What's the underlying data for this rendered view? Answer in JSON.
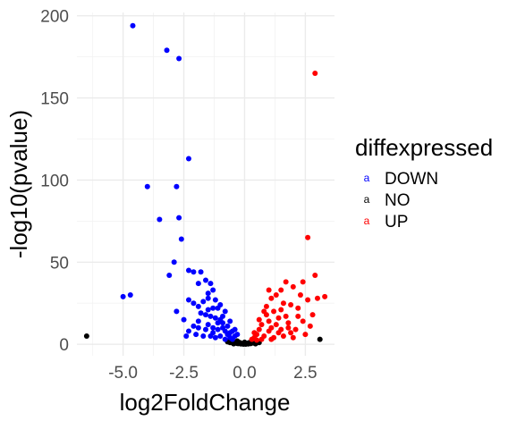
{
  "chart_data": {
    "type": "scatter",
    "xlabel": "log2FoldChange",
    "ylabel": "-log10(pvalue)",
    "xlim": [
      -6.9,
      3.7
    ],
    "ylim": [
      -7,
      202
    ],
    "x_ticks": [
      -5.0,
      -2.5,
      0.0,
      2.5
    ],
    "x_tick_labels": [
      "-5.0",
      "-2.5",
      "0.0",
      "2.5"
    ],
    "y_ticks": [
      0,
      50,
      100,
      150,
      200
    ],
    "y_tick_labels": [
      "0",
      "50",
      "100",
      "150",
      "200"
    ],
    "grid": true,
    "legend": {
      "title": "diffexpressed",
      "position": "right",
      "key_glyph": "a",
      "entries": [
        {
          "label": "DOWN",
          "color": "#0000ff"
        },
        {
          "label": "NO",
          "color": "#000000"
        },
        {
          "label": "UP",
          "color": "#ff0000"
        }
      ]
    },
    "series": [
      {
        "name": "DOWN",
        "color": "#0000ff",
        "points": [
          [
            -4.6,
            194
          ],
          [
            -3.2,
            179
          ],
          [
            -2.7,
            174
          ],
          [
            -2.3,
            113
          ],
          [
            -4.0,
            96
          ],
          [
            -2.8,
            96
          ],
          [
            -3.5,
            76
          ],
          [
            -2.7,
            77
          ],
          [
            -2.6,
            64
          ],
          [
            -2.9,
            50
          ],
          [
            -3.1,
            42
          ],
          [
            -5.0,
            29
          ],
          [
            -4.7,
            30
          ],
          [
            -2.3,
            45
          ],
          [
            -2.1,
            44
          ],
          [
            -1.8,
            44
          ],
          [
            -1.6,
            39
          ],
          [
            -1.9,
            37
          ],
          [
            -1.4,
            37
          ],
          [
            -1.3,
            33
          ],
          [
            -1.5,
            31
          ],
          [
            -2.3,
            27
          ],
          [
            -2.1,
            25
          ],
          [
            -1.9,
            23
          ],
          [
            -1.7,
            26
          ],
          [
            -1.5,
            21
          ],
          [
            -1.3,
            22
          ],
          [
            -1.1,
            22
          ],
          [
            -2.8,
            20
          ],
          [
            -2.5,
            15
          ],
          [
            -1.8,
            19
          ],
          [
            -1.6,
            18
          ],
          [
            -1.4,
            17
          ],
          [
            -1.2,
            16
          ],
          [
            -1.0,
            15
          ],
          [
            -0.9,
            13
          ],
          [
            -1.5,
            12
          ],
          [
            -1.3,
            10
          ],
          [
            -1.1,
            9
          ],
          [
            -0.9,
            10
          ],
          [
            -0.8,
            8
          ],
          [
            -0.7,
            6
          ],
          [
            -0.6,
            4
          ],
          [
            -0.5,
            3
          ],
          [
            -1.9,
            10
          ],
          [
            -2.3,
            8
          ],
          [
            -2.0,
            6
          ],
          [
            -1.7,
            5
          ],
          [
            -1.4,
            5
          ],
          [
            -1.2,
            4
          ],
          [
            -1.0,
            5
          ],
          [
            -0.8,
            3
          ],
          [
            -0.6,
            7
          ],
          [
            -0.4,
            5
          ],
          [
            -0.5,
            8
          ],
          [
            -0.7,
            11
          ],
          [
            -0.9,
            17
          ],
          [
            -1.1,
            13
          ],
          [
            -1.3,
            7
          ],
          [
            -1.6,
            9
          ],
          [
            -1.9,
            14
          ],
          [
            -2.1,
            11
          ],
          [
            -2.4,
            5
          ],
          [
            -1.2,
            27
          ],
          [
            -0.8,
            20
          ],
          [
            -0.6,
            14
          ],
          [
            -0.4,
            9
          ],
          [
            -0.3,
            6
          ],
          [
            -1.5,
            28
          ],
          [
            -1.0,
            24
          ]
        ]
      },
      {
        "name": "NO",
        "color": "#000000",
        "points": [
          [
            -6.5,
            5
          ],
          [
            3.1,
            3
          ],
          [
            -0.5,
            2
          ],
          [
            -0.4,
            1.5
          ],
          [
            -0.3,
            2
          ],
          [
            -0.2,
            1
          ],
          [
            -0.1,
            0.5
          ],
          [
            0.0,
            0.3
          ],
          [
            0.1,
            0.6
          ],
          [
            0.2,
            1
          ],
          [
            0.3,
            1.5
          ],
          [
            0.4,
            2
          ],
          [
            0.5,
            1.5
          ],
          [
            -0.6,
            1
          ],
          [
            -0.3,
            0.5
          ],
          [
            0.0,
            1.2
          ],
          [
            0.15,
            0.2
          ],
          [
            -0.15,
            0.2
          ],
          [
            0.25,
            0.4
          ],
          [
            -0.25,
            0.4
          ],
          [
            0.35,
            0.8
          ],
          [
            -0.35,
            0.8
          ],
          [
            0.6,
            1
          ],
          [
            -0.7,
            1.5
          ],
          [
            0.05,
            0.1
          ],
          [
            -0.05,
            0.1
          ],
          [
            0.45,
            0.3
          ],
          [
            -0.45,
            0.3
          ]
        ]
      },
      {
        "name": "UP",
        "color": "#ff0000",
        "points": [
          [
            2.9,
            165
          ],
          [
            2.6,
            65
          ],
          [
            2.9,
            42
          ],
          [
            2.4,
            38
          ],
          [
            3.3,
            29
          ],
          [
            3.0,
            28
          ],
          [
            1.5,
            33
          ],
          [
            1.7,
            38
          ],
          [
            2.0,
            35
          ],
          [
            2.6,
            27
          ],
          [
            1.3,
            30
          ],
          [
            1.1,
            28
          ],
          [
            1.9,
            24
          ],
          [
            2.2,
            22
          ],
          [
            1.5,
            21
          ],
          [
            1.2,
            20
          ],
          [
            0.9,
            18
          ],
          [
            1.7,
            17
          ],
          [
            2.4,
            14
          ],
          [
            1.0,
            14
          ],
          [
            0.7,
            12
          ],
          [
            1.3,
            12
          ],
          [
            1.8,
            10
          ],
          [
            2.1,
            9
          ],
          [
            0.6,
            9
          ],
          [
            1.0,
            8
          ],
          [
            1.4,
            7
          ],
          [
            2.5,
            6
          ],
          [
            0.5,
            6
          ],
          [
            0.8,
            5
          ],
          [
            1.2,
            4
          ],
          [
            1.6,
            5
          ],
          [
            2.0,
            4
          ],
          [
            0.4,
            4
          ],
          [
            0.7,
            3
          ],
          [
            1.1,
            3
          ],
          [
            0.5,
            2.5
          ],
          [
            1.4,
            16
          ],
          [
            1.6,
            25
          ],
          [
            0.9,
            23
          ],
          [
            1.1,
            10
          ],
          [
            2.3,
            30
          ],
          [
            1.8,
            13
          ],
          [
            0.6,
            15
          ],
          [
            0.4,
            7
          ],
          [
            0.3,
            3
          ],
          [
            1.9,
            7
          ],
          [
            2.7,
            11
          ],
          [
            1.5,
            9
          ],
          [
            0.8,
            20
          ],
          [
            2.2,
            17
          ],
          [
            2.8,
            18
          ],
          [
            1.0,
            33
          ]
        ]
      }
    ]
  }
}
